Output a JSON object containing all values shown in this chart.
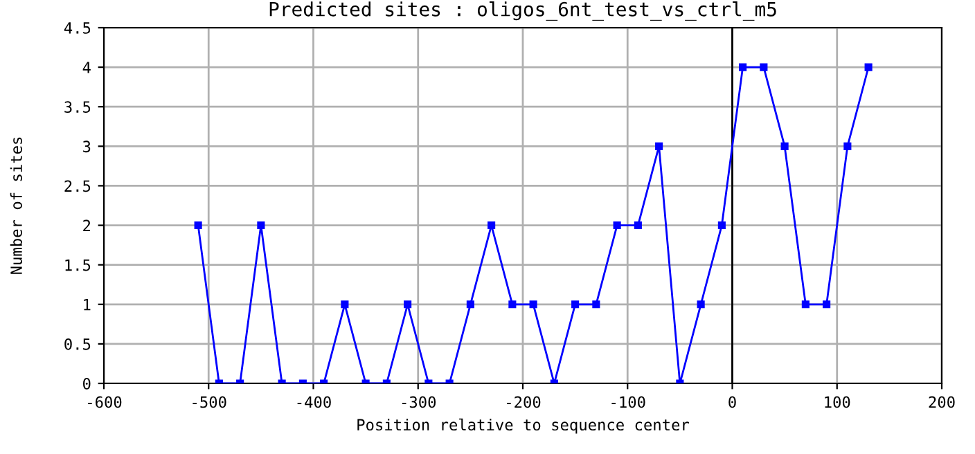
{
  "chart_data": {
    "type": "line",
    "title": "Predicted sites : oligos_6nt_test_vs_ctrl_m5",
    "xlabel": "Position relative to sequence center",
    "ylabel": "Number of sites",
    "x": [
      -510,
      -490,
      -470,
      -450,
      -430,
      -410,
      -390,
      -370,
      -350,
      -330,
      -310,
      -290,
      -270,
      -250,
      -230,
      -210,
      -190,
      -170,
      -150,
      -130,
      -110,
      -90,
      -70,
      -50,
      -30,
      -10,
      10,
      30,
      50,
      70,
      90,
      110,
      130
    ],
    "series": [
      {
        "color": "#0000ff",
        "values": [
          2,
          0,
          0,
          2,
          0,
          0,
          0,
          1,
          0,
          0,
          1,
          0,
          0,
          1,
          2,
          1,
          1,
          0,
          1,
          1,
          2,
          2,
          3,
          0,
          1,
          2,
          4,
          4,
          3,
          1,
          1,
          3,
          4
        ]
      }
    ],
    "xlim": [
      -600,
      200
    ],
    "xticks": [
      -600,
      -500,
      -400,
      -300,
      -200,
      -100,
      0,
      100,
      200
    ],
    "ylim": [
      0,
      4.5
    ],
    "yticks": [
      0,
      0.5,
      1,
      1.5,
      2,
      2.5,
      3,
      3.5,
      4,
      4.5
    ],
    "ref_lines": [
      {
        "axis": "x",
        "value": 0,
        "color": "#000000"
      }
    ],
    "grid": true,
    "marker": "square",
    "line_style": "solid"
  }
}
